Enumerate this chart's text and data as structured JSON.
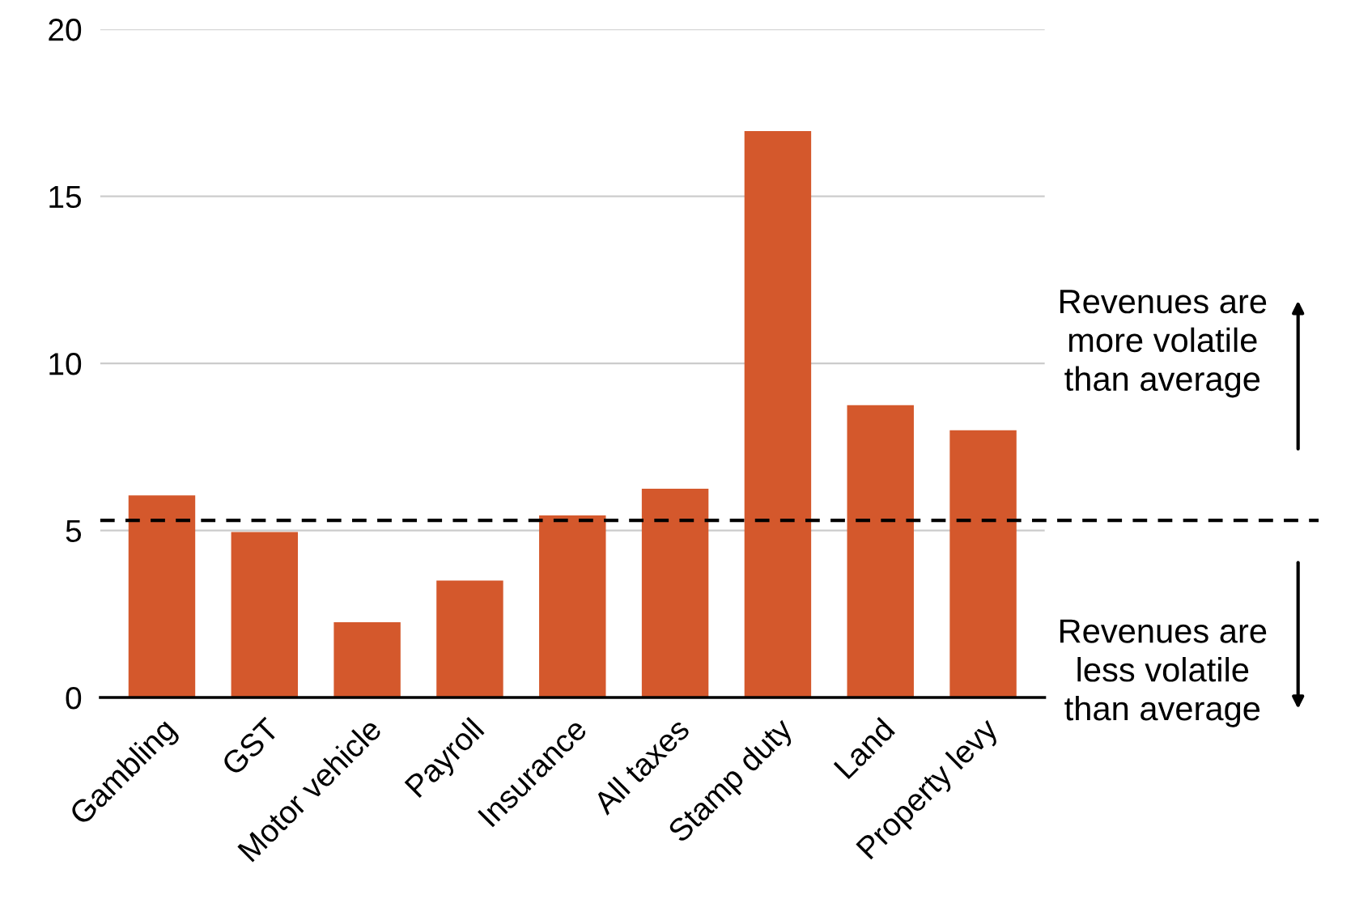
{
  "chart_data": {
    "type": "bar",
    "categories": [
      "Gambling",
      "GST",
      "Motor vehicle",
      "Payroll",
      "Insurance",
      "All taxes",
      "Stamp duty",
      "Land",
      "Property levy"
    ],
    "values": [
      6.05,
      4.95,
      2.25,
      3.5,
      5.45,
      6.25,
      16.95,
      8.75,
      8.0
    ],
    "color": "#d4582c",
    "ylim": [
      0,
      20
    ],
    "yticks": [
      0,
      5,
      10,
      15,
      20
    ],
    "grid": "y",
    "ref_lines": [
      {
        "axis": "y",
        "value": 5.3,
        "color": "#000000",
        "line_style": "dashed"
      }
    ],
    "annotations": [
      "Revenues are\nmore volatile\nthan average",
      "Revenues are\nless volatile\nthan average"
    ]
  }
}
